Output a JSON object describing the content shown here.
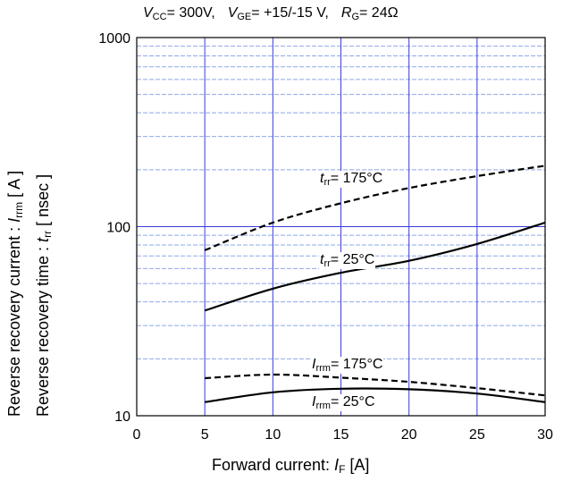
{
  "conditions": {
    "vcc_sym": "V",
    "vcc_sub": "CC",
    "vcc_val": "= 300V,",
    "vge_sym": "V",
    "vge_sub": "GE",
    "vge_val": "= +15/-15 V,",
    "rg_sym": "R",
    "rg_sub": "G",
    "rg_val": "= 24Ω"
  },
  "ylabel": {
    "line1_text": "Reverse recovery current  :  ",
    "line1_sym": "I",
    "line1_sub": "rrm",
    "line1_unit": "  [ A ]",
    "line2_text": "Reverse recovery time  :  ",
    "line2_sym": "t",
    "line2_sub": "rr",
    "line2_unit": "  [ nsec ]"
  },
  "xlabel": {
    "text": "Forward current: ",
    "sym": "I",
    "sub": "F",
    "unit": " [A]"
  },
  "chart_data": {
    "type": "line",
    "x_ticks": [
      "0",
      "5",
      "10",
      "15",
      "20",
      "25",
      "30"
    ],
    "y_ticks": [
      "10",
      "100",
      "1000"
    ],
    "xlim": [
      0,
      30
    ],
    "ylim": [
      10,
      1000
    ],
    "y_scale": "log",
    "grid": true,
    "series": [
      {
        "name": "trr 175°C",
        "sym": "t",
        "sub": "rr",
        "temp": "= 175°C",
        "dash": true,
        "x": [
          5,
          10,
          15,
          20,
          25,
          30
        ],
        "y": [
          75,
          105,
          133,
          160,
          185,
          210
        ]
      },
      {
        "name": "trr 25°C",
        "sym": "t",
        "sub": "rr",
        "temp": "= 25°C",
        "dash": false,
        "x": [
          5,
          10,
          15,
          20,
          25,
          30
        ],
        "y": [
          36,
          47,
          57,
          66,
          81,
          105
        ]
      },
      {
        "name": "Irrm 175°C",
        "sym": "I",
        "sub": "rrm",
        "temp": "= 175°C",
        "dash": true,
        "x": [
          5,
          10,
          15,
          20,
          25,
          30
        ],
        "y": [
          15.8,
          16.5,
          15.9,
          15.1,
          14.0,
          12.8
        ]
      },
      {
        "name": "Irrm 25°C",
        "sym": "I",
        "sub": "rrm",
        "temp": "= 25°C",
        "dash": false,
        "x": [
          5,
          10,
          15,
          20,
          25,
          30
        ],
        "y": [
          11.8,
          13.3,
          13.9,
          13.8,
          13.1,
          11.8
        ]
      }
    ]
  }
}
